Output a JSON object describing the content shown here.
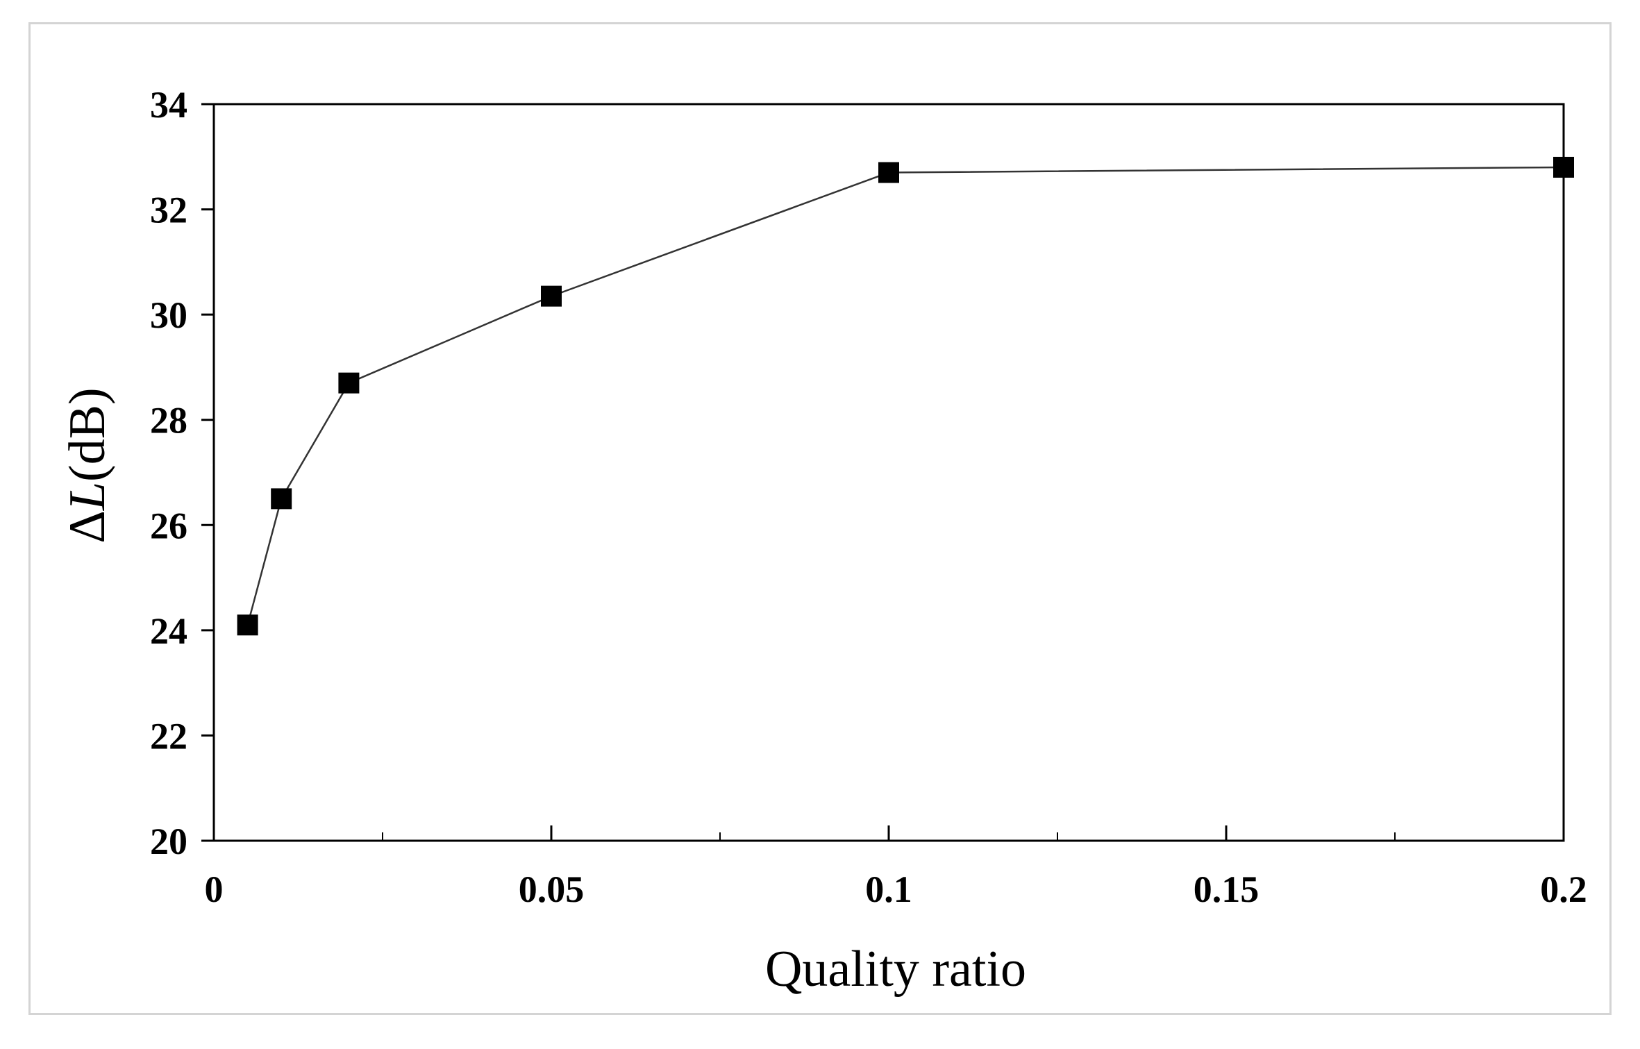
{
  "chart_data": {
    "type": "line",
    "title": "",
    "xlabel": "Quality ratio",
    "ylabel_prefix": "Δ",
    "ylabel_var": "L",
    "ylabel_unit": "(dB)",
    "xlim": [
      0,
      0.2
    ],
    "ylim": [
      20,
      34
    ],
    "x_ticks": [
      0,
      0.05,
      0.1,
      0.15,
      0.2
    ],
    "x_tick_labels": [
      "0",
      "0.05",
      "0.1",
      "0.15",
      "0.2"
    ],
    "x_minor_ticks": [
      0.025,
      0.075,
      0.125,
      0.175
    ],
    "y_ticks": [
      20,
      22,
      24,
      26,
      28,
      30,
      32,
      34
    ],
    "y_tick_labels": [
      "20",
      "22",
      "24",
      "26",
      "28",
      "30",
      "32",
      "34"
    ],
    "grid": false,
    "legend": false,
    "marker": "square",
    "series": [
      {
        "x": [
          0.005,
          0.01,
          0.02,
          0.05,
          0.1,
          0.2
        ],
        "y": [
          24.1,
          26.5,
          28.7,
          30.35,
          32.7,
          32.8
        ],
        "color": "#000000"
      }
    ]
  }
}
